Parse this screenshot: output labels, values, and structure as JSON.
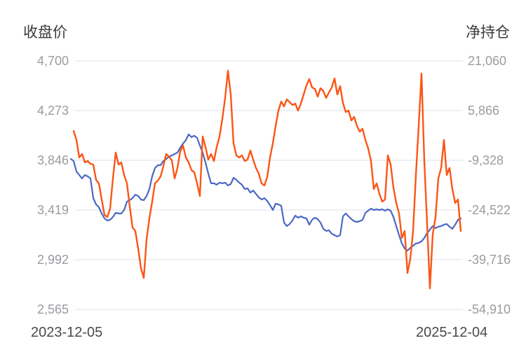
{
  "chart_data": {
    "type": "line",
    "title": "",
    "left_axis": {
      "title": "收盘价",
      "ticks": [
        "4,700",
        "4,273",
        "3,846",
        "3,419",
        "2,992",
        "2,565"
      ],
      "max": 4700,
      "min": 2565
    },
    "right_axis": {
      "title": "净持仓",
      "ticks": [
        "21,060",
        "5,866",
        "-9,328",
        "-24,522",
        "-39,716",
        "-54,910"
      ],
      "max": 21060,
      "min": -54910
    },
    "x_axis": {
      "start_label": "2023-12-05",
      "end_label": "2025-12-04",
      "note": "daily series evenly spaced between start and end dates"
    },
    "grid": true,
    "legend_position": "none",
    "colors": {
      "close": "#4b68c3",
      "position": "#fb5616",
      "gridline": "#e2e6ef",
      "tick_text": "#9b9ba1",
      "title_text": "#3b3b3b",
      "date_text": "#4a4a4a",
      "background": "#ffffff"
    },
    "series": [
      {
        "name": "收盘价",
        "axis": "left",
        "color_key": "close",
        "stroke_width": 2.2,
        "values": [
          3858,
          3840,
          3750,
          3720,
          3690,
          3720,
          3708,
          3690,
          3521,
          3467,
          3443,
          3389,
          3347,
          3329,
          3335,
          3359,
          3395,
          3389,
          3389,
          3419,
          3491,
          3503,
          3521,
          3551,
          3539,
          3509,
          3503,
          3539,
          3599,
          3708,
          3780,
          3804,
          3804,
          3840,
          3858,
          3876,
          3888,
          3900,
          3912,
          3954,
          3990,
          4020,
          4069,
          4045,
          4057,
          4039,
          3972,
          3912,
          3828,
          3732,
          3648,
          3648,
          3636,
          3654,
          3648,
          3654,
          3630,
          3642,
          3696,
          3678,
          3654,
          3636,
          3599,
          3605,
          3569,
          3587,
          3557,
          3527,
          3509,
          3521,
          3497,
          3461,
          3419,
          3473,
          3467,
          3455,
          3311,
          3281,
          3299,
          3329,
          3371,
          3353,
          3365,
          3353,
          3347,
          3293,
          3335,
          3353,
          3341,
          3311,
          3257,
          3239,
          3245,
          3215,
          3203,
          3191,
          3203,
          3365,
          3389,
          3365,
          3341,
          3323,
          3317,
          3323,
          3335,
          3395,
          3413,
          3431,
          3419,
          3425,
          3419,
          3425,
          3413,
          3425,
          3413,
          3359,
          3281,
          3203,
          3131,
          3088,
          3070,
          3094,
          3112,
          3131,
          3137,
          3149,
          3179,
          3221,
          3251,
          3281,
          3263,
          3275,
          3281,
          3293,
          3299,
          3275,
          3257,
          3293,
          3335,
          3347
        ]
      },
      {
        "name": "净持仓",
        "axis": "right",
        "color_key": "position",
        "stroke_width": 2.4,
        "values": [
          null,
          -340,
          -3122,
          -8472,
          -7402,
          -9970,
          -9542,
          -10398,
          -10612,
          -15320,
          -16390,
          -21312,
          -26020,
          -26662,
          -24094,
          -14892,
          -6974,
          -10612,
          -9970,
          -13822,
          -16390,
          -23452,
          -29872,
          -30942,
          -36292,
          -42284,
          -45280,
          -33510,
          -27090,
          -21954,
          -16390,
          -15534,
          -14250,
          -11040,
          -7402,
          -8258,
          -9328,
          -14892,
          -11682,
          -6546,
          -4834,
          -8472,
          -9970,
          -12324,
          -12966,
          -16390,
          -20242,
          -2052,
          -5262,
          -9114,
          -7402,
          -9542,
          -5262,
          -2052,
          3298,
          9718,
          18064,
          10788,
          -4192,
          -7830,
          -8472,
          -7830,
          -9542,
          -9114,
          -6332,
          -9114,
          -11682,
          -13394,
          -16390,
          -17032,
          -14464,
          -8472,
          -4192,
          1158,
          5866,
          8648,
          7150,
          9290,
          8434,
          7578,
          8006,
          5866,
          8006,
          10788,
          13570,
          15496,
          12928,
          12500,
          10146,
          12714,
          11858,
          9718,
          11430,
          12928,
          15710,
          10788,
          13356,
          8220,
          5438,
          5866,
          2870,
          3940,
          1158,
          -554,
          302,
          -3122,
          -5690,
          -9542,
          -18102,
          -16390,
          -19600,
          -21954,
          -21312,
          -7830,
          -10612,
          -17674,
          -22382,
          -25592,
          -33082,
          -30942,
          -43782,
          -39482,
          -30942,
          -13822,
          1158,
          17208,
          -9542,
          -28802,
          -48490,
          -32012,
          -26662,
          -14892,
          -11682,
          -3122,
          -13822,
          -11682,
          -18102,
          -22382,
          -21312,
          -30942
        ]
      }
    ]
  }
}
